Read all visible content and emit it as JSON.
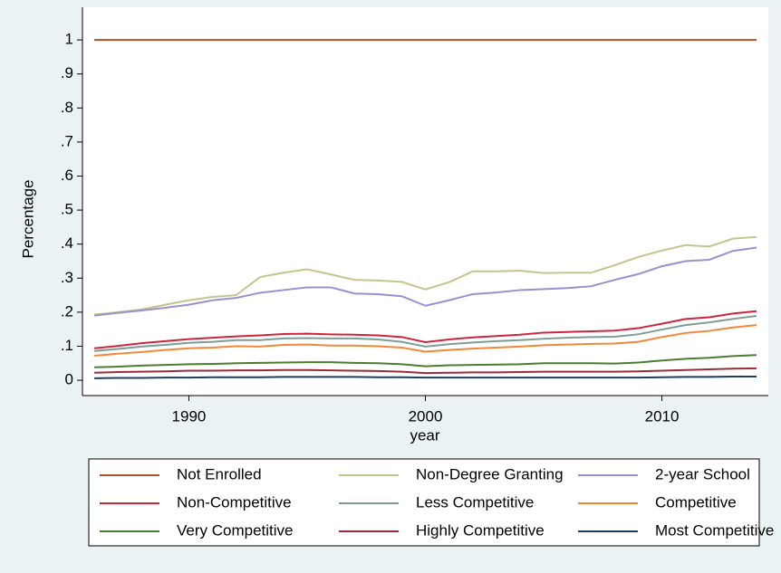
{
  "chart_data": {
    "type": "line",
    "x": [
      1986,
      1987,
      1988,
      1989,
      1990,
      1991,
      1992,
      1993,
      1994,
      1995,
      1996,
      1997,
      1998,
      1999,
      2000,
      2001,
      2002,
      2003,
      2004,
      2005,
      2006,
      2007,
      2008,
      2009,
      2010,
      2011,
      2012,
      2013,
      2014
    ],
    "xlim": [
      1985.5,
      2014.5
    ],
    "xticks": [
      1990,
      2000,
      2010
    ],
    "x_label": "year",
    "ylim": [
      -0.045,
      1.096
    ],
    "yticks": [
      0,
      {
        "value": 0.1,
        "label": ".1"
      },
      {
        "value": 0.2,
        "label": ".2"
      },
      {
        "value": 0.3,
        "label": ".3"
      },
      {
        "value": 0.4,
        "label": ".4"
      },
      {
        "value": 0.5,
        "label": ".5"
      },
      {
        "value": 0.6,
        "label": ".6"
      },
      {
        "value": 0.7,
        "label": ".7"
      },
      {
        "value": 0.8,
        "label": ".8"
      },
      {
        "value": 0.9,
        "label": ".9"
      },
      1
    ],
    "y_label": "Percentage",
    "grid": false,
    "legend": "bottom",
    "series": [
      {
        "name": "Not Enrolled",
        "color": "#a9522a",
        "values": [
          1,
          1,
          1,
          1,
          1,
          1,
          1,
          1,
          1,
          1,
          1,
          1,
          1,
          1,
          1,
          1,
          1,
          1,
          1,
          1,
          1,
          1,
          1,
          1,
          1,
          1,
          1,
          1,
          1
        ]
      },
      {
        "name": "Non-Degree Granting",
        "color": "#c9c28f",
        "values": [
          0.193,
          0.2,
          0.208,
          0.222,
          0.235,
          0.245,
          0.25,
          0.303,
          0.316,
          0.326,
          0.311,
          0.295,
          0.293,
          0.289,
          0.267,
          0.288,
          0.32,
          0.32,
          0.322,
          0.315,
          0.316,
          0.316,
          0.338,
          0.362,
          0.381,
          0.397,
          0.393,
          0.416,
          0.421
        ]
      },
      {
        "name": "2-year School",
        "color": "#9b8fd0",
        "values": [
          0.19,
          0.198,
          0.205,
          0.213,
          0.222,
          0.235,
          0.242,
          0.257,
          0.265,
          0.273,
          0.273,
          0.255,
          0.253,
          0.247,
          0.219,
          0.235,
          0.253,
          0.258,
          0.265,
          0.268,
          0.271,
          0.276,
          0.295,
          0.312,
          0.335,
          0.35,
          0.354,
          0.38,
          0.39
        ]
      },
      {
        "name": "Non-Competitive",
        "color": "#d0243c",
        "values": [
          0.094,
          0.101,
          0.109,
          0.115,
          0.121,
          0.125,
          0.129,
          0.132,
          0.136,
          0.137,
          0.135,
          0.134,
          0.132,
          0.127,
          0.112,
          0.12,
          0.126,
          0.13,
          0.134,
          0.14,
          0.142,
          0.144,
          0.146,
          0.153,
          0.166,
          0.18,
          0.185,
          0.196,
          0.203
        ]
      },
      {
        "name": "Less Competitive",
        "color": "#7e9c96",
        "values": [
          0.086,
          0.092,
          0.099,
          0.104,
          0.11,
          0.113,
          0.118,
          0.118,
          0.123,
          0.124,
          0.123,
          0.123,
          0.12,
          0.113,
          0.099,
          0.106,
          0.111,
          0.115,
          0.118,
          0.122,
          0.125,
          0.127,
          0.128,
          0.135,
          0.149,
          0.162,
          0.17,
          0.18,
          0.189
        ]
      },
      {
        "name": "Competitive",
        "color": "#f0883a",
        "values": [
          0.072,
          0.078,
          0.083,
          0.089,
          0.094,
          0.096,
          0.1,
          0.099,
          0.104,
          0.105,
          0.102,
          0.102,
          0.1,
          0.096,
          0.084,
          0.089,
          0.093,
          0.096,
          0.099,
          0.103,
          0.105,
          0.107,
          0.108,
          0.113,
          0.127,
          0.139,
          0.145,
          0.155,
          0.162
        ]
      },
      {
        "name": "Very Competitive",
        "color": "#4a7d2e",
        "values": [
          0.038,
          0.04,
          0.043,
          0.045,
          0.047,
          0.048,
          0.05,
          0.051,
          0.052,
          0.053,
          0.053,
          0.051,
          0.05,
          0.047,
          0.041,
          0.044,
          0.045,
          0.046,
          0.047,
          0.05,
          0.05,
          0.05,
          0.049,
          0.052,
          0.058,
          0.063,
          0.066,
          0.071,
          0.074
        ]
      },
      {
        "name": "Highly Competitive",
        "color": "#9c2a3a",
        "values": [
          0.022,
          0.024,
          0.025,
          0.026,
          0.028,
          0.028,
          0.029,
          0.029,
          0.03,
          0.03,
          0.029,
          0.028,
          0.027,
          0.025,
          0.021,
          0.022,
          0.023,
          0.023,
          0.024,
          0.025,
          0.025,
          0.025,
          0.025,
          0.026,
          0.028,
          0.03,
          0.032,
          0.034,
          0.035
        ]
      },
      {
        "name": "Most Competitive",
        "color": "#1f3d5c",
        "values": [
          0.006,
          0.007,
          0.007,
          0.008,
          0.008,
          0.009,
          0.009,
          0.009,
          0.01,
          0.01,
          0.01,
          0.01,
          0.009,
          0.009,
          0.008,
          0.008,
          0.008,
          0.008,
          0.008,
          0.008,
          0.008,
          0.008,
          0.008,
          0.008,
          0.009,
          0.01,
          0.01,
          0.011,
          0.011
        ]
      }
    ]
  }
}
